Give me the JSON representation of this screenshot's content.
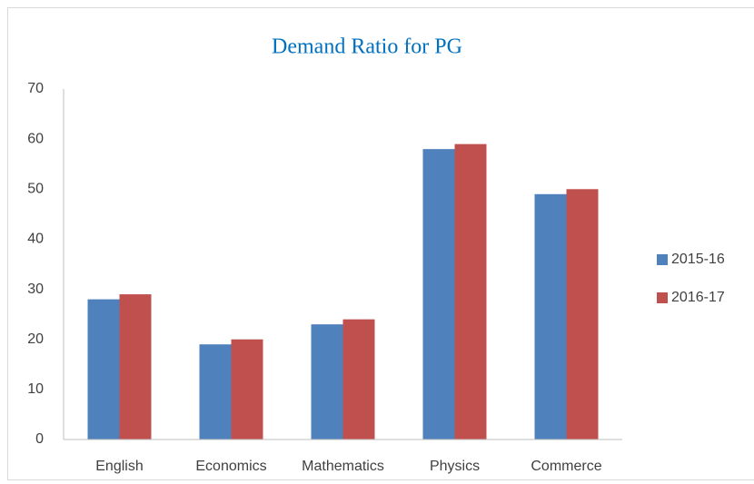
{
  "chart_data": {
    "type": "bar",
    "title": "Demand Ratio for PG",
    "categories": [
      "English",
      "Economics",
      "Mathematics",
      "Physics",
      "Commerce"
    ],
    "series": [
      {
        "name": "2015-16",
        "color": "#4f81bd",
        "values": [
          28,
          19,
          23,
          58,
          49
        ]
      },
      {
        "name": "2016-17",
        "color": "#c0504d",
        "values": [
          29,
          20,
          24,
          59,
          50
        ]
      }
    ],
    "ylim": [
      0,
      70
    ],
    "yticks": [
      0,
      10,
      20,
      30,
      40,
      50,
      60,
      70
    ],
    "grid": false,
    "legend": "right"
  }
}
